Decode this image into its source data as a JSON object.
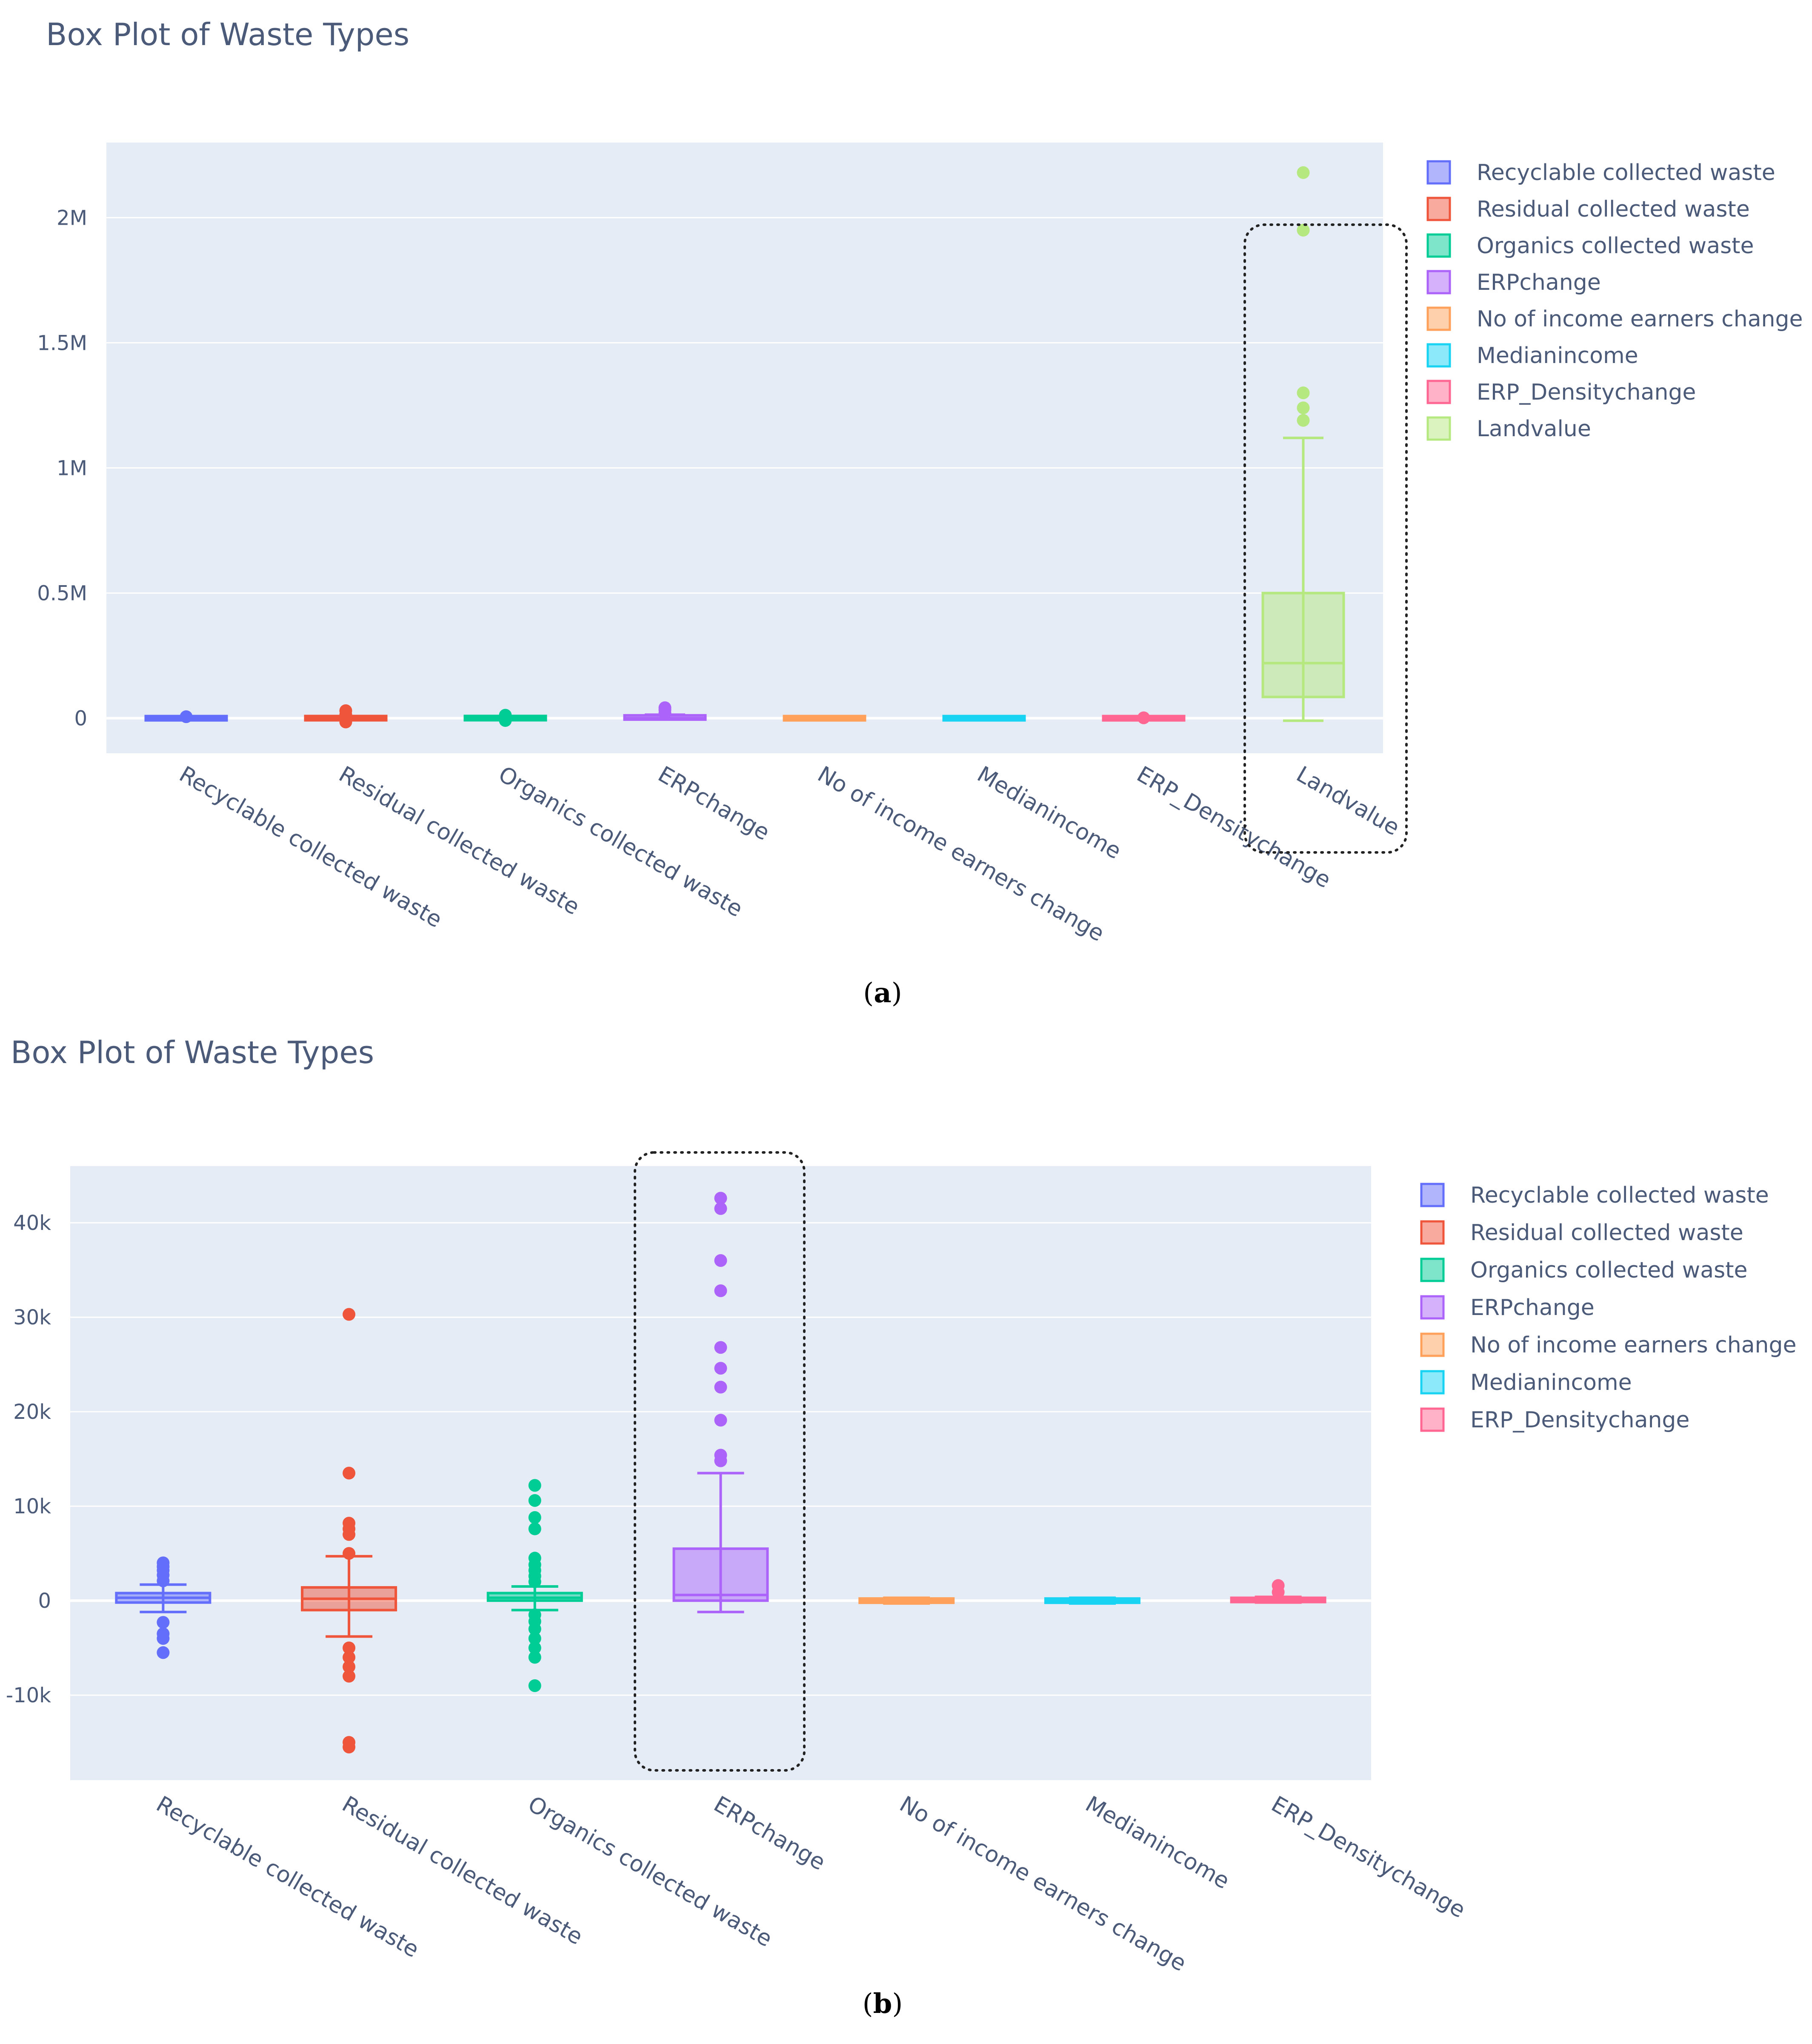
{
  "chart_data": [
    {
      "id": "a",
      "type": "box",
      "title": "Box Plot of Waste Types",
      "caption": "a",
      "ylim": [
        -140000,
        2300000
      ],
      "yticks": [
        0,
        500000,
        1000000,
        1500000,
        2000000
      ],
      "ytick_labels": [
        "0",
        "0.5M",
        "1M",
        "1.5M",
        "2M"
      ],
      "grid": true,
      "legend_position": "top-right",
      "highlight": "Landvalue",
      "categories": [
        "Recyclable collected waste",
        "Residual collected waste",
        "Organics collected waste",
        "ERPchange",
        "No of income earners change",
        "Medianincome",
        "ERP_Densitychange",
        "Landvalue"
      ],
      "series": [
        {
          "name": "Recyclable collected waste",
          "color": "#636efa",
          "min": -5000,
          "q1": -1000,
          "median": 0,
          "q3": 1000,
          "max": 4000,
          "outliers": [
            6000
          ]
        },
        {
          "name": "Residual collected waste",
          "color": "#ef553b",
          "min": -4000,
          "q1": -1000,
          "median": 0,
          "q3": 1500,
          "max": 5000,
          "outliers": [
            14000,
            30000,
            -15000
          ]
        },
        {
          "name": "Organics collected waste",
          "color": "#00cc96",
          "min": -1000,
          "q1": 0,
          "median": 500,
          "q3": 1000,
          "max": 2000,
          "outliers": [
            12000,
            -9000
          ]
        },
        {
          "name": "ERPchange",
          "color": "#ab63fa",
          "min": -1000,
          "q1": 0,
          "median": 500,
          "q3": 6000,
          "max": 14000,
          "outliers": [
            20000,
            33000,
            42000
          ]
        },
        {
          "name": "No of income earners change",
          "color": "#ffa15a",
          "min": -500,
          "q1": -200,
          "median": 0,
          "q3": 200,
          "max": 500,
          "outliers": []
        },
        {
          "name": "Medianincome",
          "color": "#19d3f3",
          "min": -500,
          "q1": -200,
          "median": 0,
          "q3": 200,
          "max": 500,
          "outliers": []
        },
        {
          "name": "ERP_Densitychange",
          "color": "#ff6692",
          "min": -500,
          "q1": -200,
          "median": 0,
          "q3": 200,
          "max": 500,
          "outliers": [
            1500
          ]
        },
        {
          "name": "Landvalue",
          "color": "#b6e880",
          "min": -10000,
          "q1": 85000,
          "median": 220000,
          "q3": 500000,
          "max": 1120000,
          "outliers": [
            1190000,
            1240000,
            1300000,
            1950000,
            2180000
          ]
        }
      ]
    },
    {
      "id": "b",
      "type": "box",
      "title": "Box Plot of Waste Types",
      "caption": "b",
      "ylim": [
        -19000,
        46000
      ],
      "yticks": [
        -10000,
        0,
        10000,
        20000,
        30000,
        40000
      ],
      "ytick_labels": [
        "-10k",
        "0",
        "10k",
        "20k",
        "30k",
        "40k"
      ],
      "grid": true,
      "legend_position": "top-right",
      "highlight": "ERPchange",
      "categories": [
        "Recyclable collected waste",
        "Residual collected waste",
        "Organics collected waste",
        "ERPchange",
        "No of income earners change",
        "Medianincome",
        "ERP_Densitychange"
      ],
      "series": [
        {
          "name": "Recyclable collected waste",
          "color": "#636efa",
          "min": -1200,
          "q1": -200,
          "median": 300,
          "q3": 800,
          "max": 1700,
          "outliers": [
            2100,
            2700,
            3200,
            3600,
            4000,
            -2300,
            -3500,
            -4000,
            -5500
          ]
        },
        {
          "name": "Residual collected waste",
          "color": "#ef553b",
          "min": -3800,
          "q1": -1000,
          "median": 200,
          "q3": 1400,
          "max": 4700,
          "outliers": [
            5000,
            7000,
            7600,
            8200,
            13500,
            30300,
            -5000,
            -6000,
            -7000,
            -8000,
            -15000,
            -15500
          ]
        },
        {
          "name": "Organics collected waste",
          "color": "#00cc96",
          "min": -1000,
          "q1": 0,
          "median": 300,
          "q3": 800,
          "max": 1500,
          "outliers": [
            2000,
            2600,
            3200,
            3800,
            4500,
            7600,
            8800,
            10600,
            12200,
            -1500,
            -2200,
            -3000,
            -4000,
            -5000,
            -6000,
            -9000
          ]
        },
        {
          "name": "ERPchange",
          "color": "#ab63fa",
          "min": -1200,
          "q1": 0,
          "median": 600,
          "q3": 5500,
          "max": 13500,
          "outliers": [
            14800,
            15400,
            19100,
            22600,
            24600,
            26800,
            32800,
            36000,
            41500,
            42600
          ]
        },
        {
          "name": "No of income earners change",
          "color": "#ffa15a",
          "min": -300,
          "q1": -100,
          "median": 0,
          "q3": 100,
          "max": 300,
          "outliers": []
        },
        {
          "name": "Medianincome",
          "color": "#19d3f3",
          "min": -300,
          "q1": -100,
          "median": 0,
          "q3": 100,
          "max": 300,
          "outliers": []
        },
        {
          "name": "ERP_Densitychange",
          "color": "#ff6692",
          "min": -200,
          "q1": -50,
          "median": 50,
          "q3": 200,
          "max": 400,
          "outliers": [
            900,
            1600
          ]
        }
      ]
    }
  ]
}
